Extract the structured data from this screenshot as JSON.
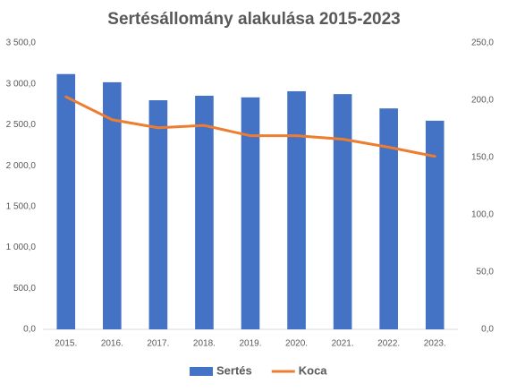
{
  "chart_data": {
    "type": "bar",
    "title": "Sertésállomány alakulása 2015-2023",
    "categories": [
      "2015.",
      "2016.",
      "2017.",
      "2018.",
      "2019.",
      "2020.",
      "2021.",
      "2022.",
      "2023."
    ],
    "series": [
      {
        "name": "Sertés",
        "type": "bar",
        "color": "#4472c4",
        "values": [
          3120,
          3020,
          2800,
          2855,
          2835,
          2910,
          2875,
          2700,
          2550
        ]
      },
      {
        "name": "Koca",
        "type": "line",
        "axis": "y2",
        "color": "#ed7d31",
        "values": [
          203,
          183,
          176,
          178,
          169,
          169,
          166,
          159,
          151
        ]
      }
    ],
    "ylim": [
      0,
      3500
    ],
    "yticks": [
      {
        "value": 0,
        "label": "0,0"
      },
      {
        "value": 500,
        "label": "500,0"
      },
      {
        "value": 1000,
        "label": "1 000,0"
      },
      {
        "value": 1500,
        "label": "1 500,0"
      },
      {
        "value": 2000,
        "label": "2 000,0"
      },
      {
        "value": 2500,
        "label": "2 500,0"
      },
      {
        "value": 3000,
        "label": "3 000,0"
      },
      {
        "value": 3500,
        "label": "3 500,0"
      }
    ],
    "y2lim": [
      0,
      250
    ],
    "y2ticks": [
      {
        "value": 0,
        "label": "0,0"
      },
      {
        "value": 50,
        "label": "50,0"
      },
      {
        "value": 100,
        "label": "100,0"
      },
      {
        "value": 150,
        "label": "150,0"
      },
      {
        "value": 200,
        "label": "200,0"
      },
      {
        "value": 250,
        "label": "250,0"
      }
    ],
    "grid": false,
    "legend": "bottom"
  }
}
